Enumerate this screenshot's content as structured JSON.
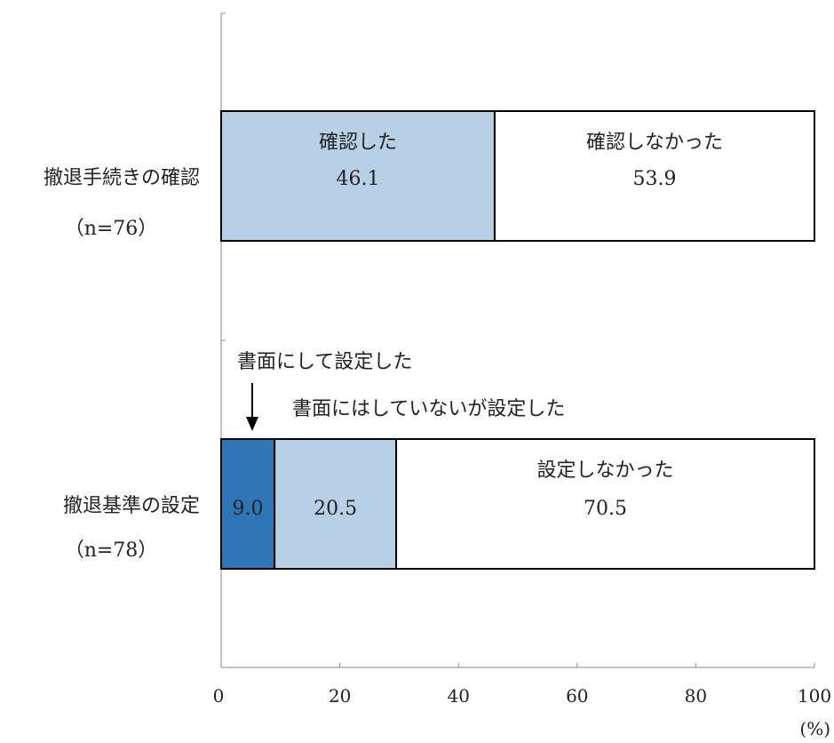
{
  "chart_data": {
    "type": "bar",
    "orientation": "horizontal",
    "stacked": true,
    "title": "",
    "xlabel": "",
    "ylabel": "",
    "unit": "(%)",
    "xlim": [
      0,
      100
    ],
    "ticks": [
      "0",
      "20",
      "40",
      "60",
      "80",
      "100"
    ],
    "grid": false,
    "categories": [
      {
        "label": "撤退手続きの確認",
        "n_label": "（n=76）"
      },
      {
        "label": "撤退基準の設定",
        "n_label": "（n=78）"
      }
    ],
    "bars": [
      {
        "segments": [
          {
            "label": "確認した",
            "value": 46.1,
            "value_text": "46.1",
            "color": "#b8d0e6"
          },
          {
            "label": "確認しなかった",
            "value": 53.9,
            "value_text": "53.9",
            "color": "#ffffff"
          }
        ]
      },
      {
        "segments": [
          {
            "label": "書面にして設定した",
            "value": 9.0,
            "value_text": "9.0",
            "color": "#2e75b6"
          },
          {
            "label": "書面にはしていないが設定した",
            "value": 20.5,
            "value_text": "20.5",
            "color": "#b8d0e6"
          },
          {
            "label": "設定しなかった",
            "value": 70.5,
            "value_text": "70.5",
            "color": "#ffffff"
          }
        ]
      }
    ],
    "annotations": [
      {
        "text": "書面にして設定した",
        "arrow": "down"
      },
      {
        "text": "書面にはしていないが設定した",
        "arrow": "none"
      }
    ]
  }
}
